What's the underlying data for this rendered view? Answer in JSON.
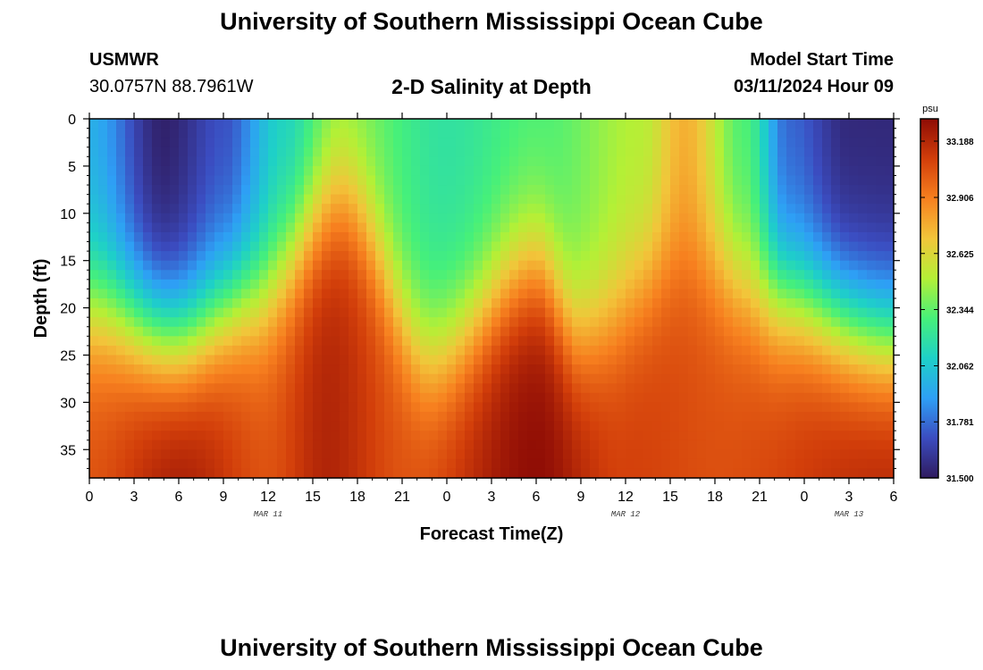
{
  "header": {
    "title": "University of Southern Mississippi Ocean Cube",
    "station": "USMWR",
    "coords": "30.0757N  88.7961W",
    "chart_title": "2-D Salinity at Depth",
    "model_start_label": "Model Start Time",
    "model_start_value": "03/11/2024 Hour 09"
  },
  "footer": {
    "title": "University of Southern Mississippi Ocean Cube"
  },
  "chart_data": {
    "type": "heatmap",
    "title": "2-D Salinity at Depth",
    "xlabel": "Forecast Time(Z)",
    "ylabel": "Depth (ft)",
    "x_tick_labels": [
      "0",
      "3",
      "6",
      "9",
      "12",
      "15",
      "18",
      "21",
      "0",
      "3",
      "6",
      "9",
      "12",
      "15",
      "18",
      "21",
      "0",
      "3",
      "6"
    ],
    "x_range_hours": [
      0,
      54
    ],
    "date_labels": [
      {
        "text": "MAR 11",
        "hour": 12
      },
      {
        "text": "MAR 12",
        "hour": 36
      },
      {
        "text": "MAR 13",
        "hour": 51
      }
    ],
    "y_tick_labels": [
      "0",
      "5",
      "10",
      "15",
      "20",
      "25",
      "30",
      "35"
    ],
    "ylim": [
      0,
      38
    ],
    "y_inverted": true,
    "colorbar": {
      "unit": "psu",
      "range": [
        31.5,
        33.3
      ],
      "tick_labels": [
        "33.188",
        "32.906",
        "32.625",
        "32.344",
        "32.062",
        "31.781",
        "31.500"
      ],
      "colors": [
        "#2f1b5f",
        "#3b4cc0",
        "#2e9ff5",
        "#1ed0c8",
        "#46f07a",
        "#b4f036",
        "#f2c53a",
        "#f7801f",
        "#d23e0a",
        "#8e0c05"
      ]
    },
    "surface_profile": [
      {
        "hour": 0,
        "psu": 31.95
      },
      {
        "hour": 5,
        "psu": 31.52
      },
      {
        "hour": 9,
        "psu": 31.7
      },
      {
        "hour": 13,
        "psu": 32.1
      },
      {
        "hour": 17,
        "psu": 32.4
      },
      {
        "hour": 24,
        "psu": 32.2
      },
      {
        "hour": 30,
        "psu": 32.3
      },
      {
        "hour": 37,
        "psu": 32.5
      },
      {
        "hour": 40,
        "psu": 32.75
      },
      {
        "hour": 44,
        "psu": 32.3
      },
      {
        "hour": 47,
        "psu": 31.75
      },
      {
        "hour": 51,
        "psu": 31.55
      },
      {
        "hour": 54,
        "psu": 31.55
      }
    ],
    "bottom_profile": [
      {
        "hour": 0,
        "psu": 33.05
      },
      {
        "hour": 6,
        "psu": 33.25
      },
      {
        "hour": 12,
        "psu": 33.05
      },
      {
        "hour": 16,
        "psu": 33.2
      },
      {
        "hour": 21,
        "psu": 33.05
      },
      {
        "hour": 30,
        "psu": 33.3
      },
      {
        "hour": 36,
        "psu": 33.1
      },
      {
        "hour": 42,
        "psu": 33.05
      },
      {
        "hour": 54,
        "psu": 33.2
      }
    ],
    "halocline_depth_ft": [
      {
        "hour": 0,
        "depth": 20
      },
      {
        "hour": 6,
        "depth": 23
      },
      {
        "hour": 11,
        "depth": 19
      },
      {
        "hour": 17,
        "depth": 9
      },
      {
        "hour": 23,
        "depth": 25
      },
      {
        "hour": 30,
        "depth": 16
      },
      {
        "hour": 33,
        "depth": 23
      },
      {
        "hour": 40,
        "depth": 15
      },
      {
        "hour": 46,
        "depth": 19
      },
      {
        "hour": 54,
        "depth": 23
      }
    ]
  }
}
